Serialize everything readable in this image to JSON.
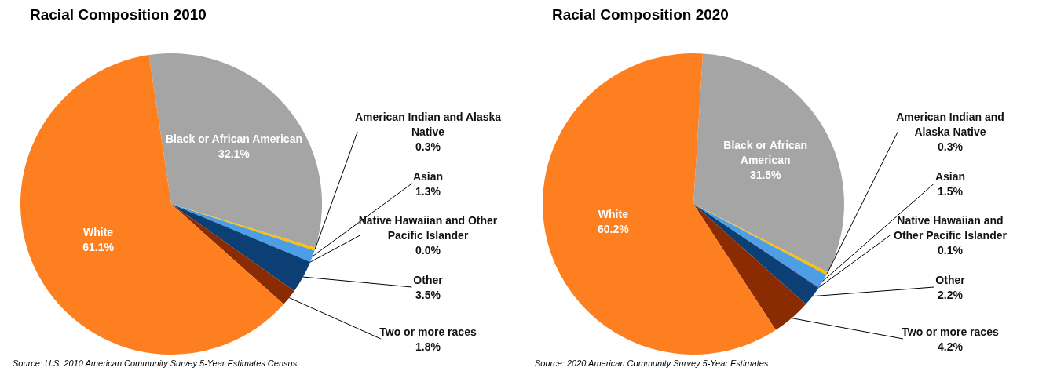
{
  "chart_data": [
    {
      "type": "pie",
      "title": "Racial Composition 2010",
      "categories": [
        "Black or African American",
        "American Indian and Alaska Native",
        "Asian",
        "Native Hawaiian and Other Pacific Islander",
        "Other",
        "Two or more races",
        "White"
      ],
      "values": [
        32.1,
        0.3,
        1.3,
        0.0,
        3.5,
        1.8,
        61.1
      ],
      "value_labels": [
        "32.1%",
        "0.3%",
        "1.3%",
        "0.0%",
        "3.5%",
        "1.8%",
        "61.1%"
      ],
      "colors": [
        "#a5a5a5",
        "#ffc000",
        "#4e9ee6",
        "#4472c4",
        "#0c3f73",
        "#8a2b02",
        "#fd7f1f"
      ],
      "annotations": [
        "Source: U.S. 2010 American Community Survey 5-Year Estimates Census"
      ]
    },
    {
      "type": "pie",
      "title": "Racial Composition 2020",
      "categories": [
        "Black or African American",
        "American Indian and Alaska Native",
        "Asian",
        "Native Hawaiian and Other Pacific Islander",
        "Other",
        "Two or more races",
        "White"
      ],
      "values": [
        31.5,
        0.3,
        1.5,
        0.1,
        2.2,
        4.2,
        60.2
      ],
      "value_labels": [
        "31.5%",
        "0.3%",
        "1.5%",
        "0.1%",
        "2.2%",
        "4.2%",
        "60.2%"
      ],
      "colors": [
        "#a5a5a5",
        "#ffc000",
        "#4e9ee6",
        "#4472c4",
        "#0c3f73",
        "#8a2b02",
        "#fd7f1f"
      ],
      "annotations": [
        "Source: 2020 American Community Survey 5-Year Estimates"
      ]
    }
  ]
}
